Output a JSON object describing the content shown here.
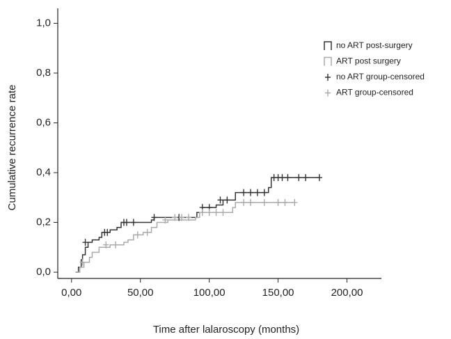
{
  "chart_data": {
    "type": "step",
    "x_label": "Time after lalaroscopy (months)",
    "y_label": "Cumulative recurrence rate",
    "xlim": [
      -10,
      225
    ],
    "ylim": [
      -0.025,
      1.06
    ],
    "xticks": [
      {
        "value": 0,
        "label": "0,00"
      },
      {
        "value": 50,
        "label": "50,00"
      },
      {
        "value": 100,
        "label": "100,00"
      },
      {
        "value": 150,
        "label": "150,00"
      },
      {
        "value": 200,
        "label": "200,00"
      }
    ],
    "yticks": [
      {
        "value": 0,
        "label": "0,0"
      },
      {
        "value": 0.2,
        "label": "0,2"
      },
      {
        "value": 0.4,
        "label": "0,4"
      },
      {
        "value": 0.6,
        "label": "0,6"
      },
      {
        "value": 0.8,
        "label": "0,8"
      },
      {
        "value": 1.0,
        "label": "1,0"
      }
    ],
    "legend": "upper right",
    "series": [
      {
        "name": "no ART post-surgery",
        "style": "step",
        "color": "#333333",
        "x": [
          3,
          5,
          7,
          8,
          10,
          12,
          15,
          20,
          22,
          28,
          33,
          36,
          58,
          60,
          91,
          95,
          105,
          110,
          119,
          143,
          145,
          180
        ],
        "values": [
          0,
          0.02,
          0.05,
          0.07,
          0.1,
          0.12,
          0.13,
          0.14,
          0.16,
          0.17,
          0.18,
          0.2,
          0.21,
          0.22,
          0.24,
          0.26,
          0.27,
          0.29,
          0.32,
          0.34,
          0.38,
          0.38
        ]
      },
      {
        "name": "ART post surgery",
        "style": "step",
        "color": "#aaaaaa",
        "x": [
          3,
          6,
          9,
          13,
          15,
          20,
          28,
          38,
          41,
          45,
          52,
          58,
          62,
          70,
          90,
          93,
          117,
          119,
          162
        ],
        "values": [
          0,
          0.02,
          0.04,
          0.06,
          0.08,
          0.1,
          0.11,
          0.12,
          0.13,
          0.15,
          0.16,
          0.18,
          0.2,
          0.21,
          0.22,
          0.24,
          0.26,
          0.28,
          0.28
        ]
      },
      {
        "name": "no ART group-censored",
        "style": "censor",
        "color": "#333333",
        "x": [
          10,
          24,
          26,
          38,
          40,
          45,
          60,
          78,
          95,
          100,
          108,
          113,
          125,
          130,
          135,
          140,
          147,
          150,
          153,
          157,
          165,
          170,
          180
        ],
        "values": [
          0.12,
          0.16,
          0.16,
          0.2,
          0.2,
          0.2,
          0.22,
          0.22,
          0.26,
          0.26,
          0.29,
          0.29,
          0.32,
          0.32,
          0.32,
          0.32,
          0.38,
          0.38,
          0.38,
          0.38,
          0.38,
          0.38,
          0.38
        ]
      },
      {
        "name": "ART group-censored",
        "style": "censor",
        "color": "#aaaaaa",
        "x": [
          8,
          25,
          32,
          48,
          55,
          68,
          75,
          80,
          85,
          95,
          100,
          105,
          110,
          125,
          130,
          140,
          150,
          155,
          162
        ],
        "values": [
          0.04,
          0.11,
          0.11,
          0.15,
          0.16,
          0.21,
          0.22,
          0.22,
          0.22,
          0.24,
          0.24,
          0.24,
          0.24,
          0.28,
          0.28,
          0.28,
          0.28,
          0.28,
          0.28
        ]
      }
    ]
  }
}
